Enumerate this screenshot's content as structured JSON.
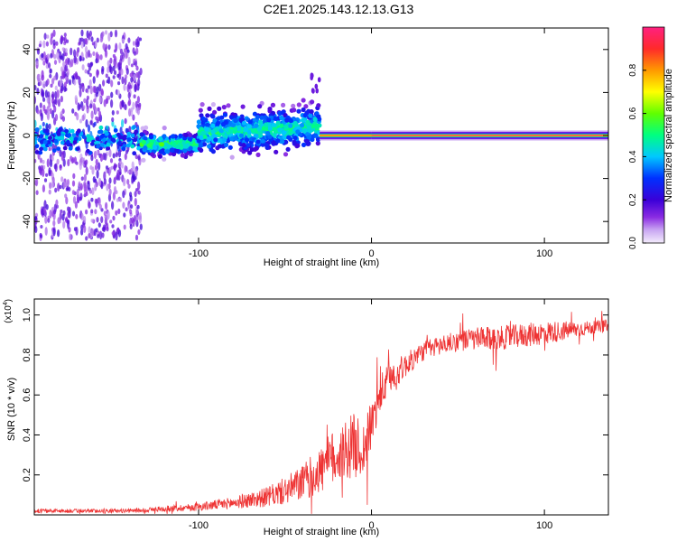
{
  "page": {
    "title": "C2E1.2025.143.12.13.G13"
  },
  "colorbar": {
    "label": "Normalized spectral amplitude",
    "ticks": [
      0.0,
      0.2,
      0.4,
      0.6,
      0.8
    ],
    "tick_labels": [
      "0.0",
      "0.2",
      "0.4",
      "0.6",
      "0.8"
    ]
  },
  "chart_data": [
    {
      "type": "heatmap",
      "xlabel": "Height of straight line (km)",
      "ylabel": "Frequency (Hz)",
      "xlim": [
        -195,
        137
      ],
      "ylim": [
        -50,
        50
      ],
      "xticks": [
        -100,
        0,
        100
      ],
      "xtick_labels": [
        "-100",
        "0",
        "100"
      ],
      "yticks": [
        -40,
        -20,
        0,
        20,
        40
      ],
      "ytick_labels": [
        "-40",
        "-20",
        "0",
        "20",
        "40"
      ],
      "z_range": [
        0.0,
        1.0
      ],
      "grid": false,
      "segments": [
        {
          "x": [
            -195,
            -133
          ],
          "center_freq": -2,
          "spread_hz": 48,
          "amplitude": 0.2
        },
        {
          "x": [
            -133,
            -100
          ],
          "center_freq": -4,
          "spread_hz": 5,
          "amplitude": 0.45
        },
        {
          "x": [
            -100,
            -30
          ],
          "center_freq": 1,
          "spread_hz": 10,
          "amplitude": 0.4
        },
        {
          "x": [
            -30,
            0
          ],
          "center_freq": 0,
          "spread_hz": 2,
          "amplitude": 0.85
        },
        {
          "x": [
            0,
            137
          ],
          "center_freq": 0,
          "spread_hz": 1,
          "amplitude": 0.95
        }
      ],
      "features": [
        {
          "x": -33,
          "freq": 25,
          "amplitude": 0.15
        }
      ]
    },
    {
      "type": "line",
      "xlabel": "Height of straight line (km)",
      "ylabel": "SNR (10 * v/v)",
      "y_multiplier_label": "(x10",
      "y_multiplier_exp": "4",
      "y_multiplier_close": ")",
      "xlim": [
        -195,
        137
      ],
      "ylim": [
        0.0,
        1.08
      ],
      "xticks": [
        -100,
        0,
        100
      ],
      "xtick_labels": [
        "-100",
        "0",
        "100"
      ],
      "yticks": [
        0.2,
        0.4,
        0.6,
        0.8,
        1.0
      ],
      "ytick_labels": [
        "0.2",
        "0.4",
        "0.6",
        "0.8",
        "1.0"
      ],
      "grid": false,
      "series": [
        {
          "color": "#ee3333",
          "x": [
            -195,
            -180,
            -160,
            -140,
            -120,
            -100,
            -80,
            -60,
            -50,
            -40,
            -30,
            -20,
            -10,
            -5,
            0,
            5,
            10,
            20,
            30,
            40,
            50,
            60,
            70,
            80,
            90,
            100,
            110,
            120,
            130,
            137
          ],
          "y": [
            0.02,
            0.02,
            0.02,
            0.02,
            0.03,
            0.04,
            0.06,
            0.09,
            0.12,
            0.16,
            0.22,
            0.3,
            0.35,
            0.32,
            0.45,
            0.6,
            0.68,
            0.75,
            0.82,
            0.85,
            0.87,
            0.88,
            0.88,
            0.89,
            0.9,
            0.91,
            0.92,
            0.93,
            0.94,
            0.95
          ],
          "noise": [
            0.01,
            0.01,
            0.01,
            0.01,
            0.015,
            0.02,
            0.03,
            0.05,
            0.07,
            0.09,
            0.12,
            0.15,
            0.16,
            0.14,
            0.12,
            0.1,
            0.08,
            0.06,
            0.05,
            0.05,
            0.05,
            0.06,
            0.06,
            0.06,
            0.06,
            0.06,
            0.05,
            0.04,
            0.03,
            0.03
          ]
        }
      ]
    }
  ]
}
